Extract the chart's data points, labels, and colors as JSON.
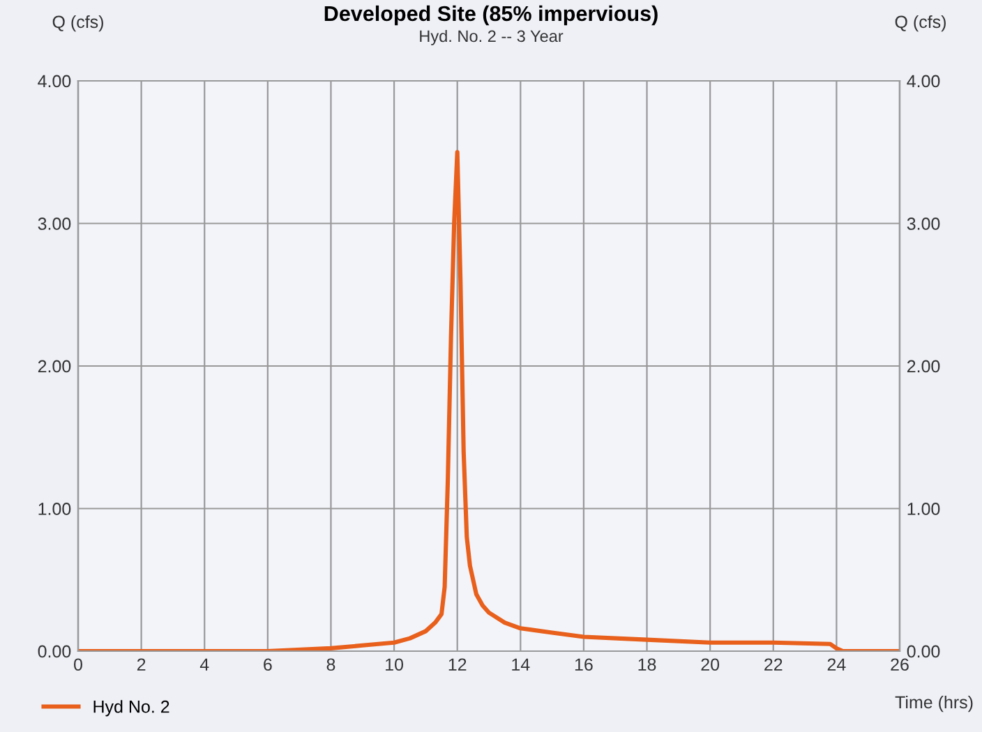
{
  "chart_data": {
    "type": "line",
    "title": "Developed Site (85% impervious)",
    "subtitle": "Hyd. No. 2 -- 3 Year",
    "xlabel": "Time (hrs)",
    "ylabel": "Q (cfs)",
    "y2label": "Q (cfs)",
    "xlim": [
      0,
      26
    ],
    "xticks": [
      0,
      2,
      4,
      6,
      8,
      10,
      12,
      14,
      16,
      18,
      20,
      22,
      24,
      26
    ],
    "ylim": [
      0,
      4
    ],
    "yticks": [
      {
        "value": 0,
        "label": "0.00"
      },
      {
        "value": 1,
        "label": "1.00"
      },
      {
        "value": 2,
        "label": "2.00"
      },
      {
        "value": 3,
        "label": "3.00"
      },
      {
        "value": 4,
        "label": "4.00"
      }
    ],
    "y2lim": [
      0,
      4
    ],
    "y2ticks": [
      {
        "value": 0,
        "label": "0.00"
      },
      {
        "value": 1,
        "label": "1.00"
      },
      {
        "value": 2,
        "label": "2.00"
      },
      {
        "value": 3,
        "label": "3.00"
      },
      {
        "value": 4,
        "label": "4.00"
      }
    ],
    "grid": true,
    "legend": "bottom left",
    "marker": "none",
    "line_style": "solid",
    "series": [
      {
        "name": "Hyd No. 2",
        "color": "#e8601c",
        "x": [
          0,
          3,
          6,
          8,
          9,
          10,
          10.5,
          11,
          11.3,
          11.5,
          11.6,
          11.7,
          11.8,
          11.9,
          12.0,
          12.1,
          12.2,
          12.3,
          12.4,
          12.6,
          12.8,
          13,
          13.5,
          14,
          15,
          16,
          18,
          20,
          22,
          23.8,
          24,
          24.2,
          26
        ],
        "values": [
          0,
          0,
          0,
          0.02,
          0.04,
          0.06,
          0.09,
          0.14,
          0.2,
          0.26,
          0.45,
          1.2,
          2.2,
          3.0,
          3.5,
          2.6,
          1.4,
          0.8,
          0.6,
          0.4,
          0.32,
          0.27,
          0.2,
          0.16,
          0.13,
          0.1,
          0.08,
          0.06,
          0.06,
          0.05,
          0.02,
          0,
          0
        ]
      }
    ]
  }
}
